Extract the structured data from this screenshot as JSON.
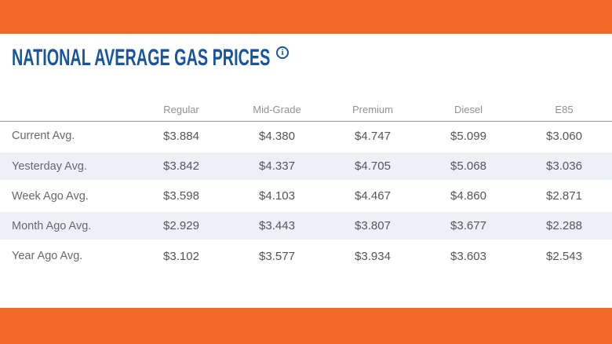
{
  "header": {
    "title": "NATIONAL AVERAGE GAS PRICES",
    "info_glyph": "i"
  },
  "colors": {
    "accent_orange": "#F26726",
    "title_blue": "#17559E",
    "stripe_row": "#EDF1F6",
    "header_text": "#8F9194",
    "value_text": "#55565A",
    "label_text": "#68696D",
    "header_rule": "#98999B"
  },
  "table": {
    "columns": [
      "Regular",
      "Mid-Grade",
      "Premium",
      "Diesel",
      "E85"
    ],
    "rows": [
      {
        "label": "Current Avg.",
        "values": [
          "$3.884",
          "$4.380",
          "$4.747",
          "$5.099",
          "$3.060"
        ]
      },
      {
        "label": "Yesterday Avg.",
        "values": [
          "$3.842",
          "$4.337",
          "$4.705",
          "$5.068",
          "$3.036"
        ]
      },
      {
        "label": "Week Ago Avg.",
        "values": [
          "$3.598",
          "$4.103",
          "$4.467",
          "$4.860",
          "$2.871"
        ]
      },
      {
        "label": "Month Ago Avg.",
        "values": [
          "$2.929",
          "$3.443",
          "$3.807",
          "$3.677",
          "$2.288"
        ]
      },
      {
        "label": "Year Ago Avg.",
        "values": [
          "$3.102",
          "$3.577",
          "$3.934",
          "$3.603",
          "$2.543"
        ]
      }
    ]
  }
}
